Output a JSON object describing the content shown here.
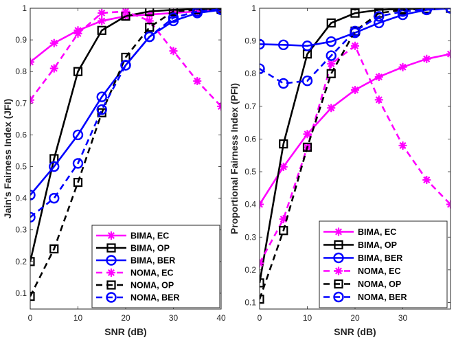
{
  "chart_data": [
    {
      "type": "line",
      "xlabel": "SNR (dB)",
      "ylabel": "Jain's Fairness Index (JFI)",
      "xlim": [
        0,
        40
      ],
      "ylim": [
        0.05,
        1.0
      ],
      "xticks": [
        "0",
        "10",
        "20",
        "30",
        "40"
      ],
      "yticks": [
        "0.1",
        "0.2",
        "0.3",
        "0.4",
        "0.5",
        "0.6",
        "0.7",
        "0.8",
        "0.9",
        "1"
      ],
      "legend_position": "bottom-right",
      "series": [
        {
          "name": "BIMA, EC",
          "color": "#ff00ff",
          "dash": "solid",
          "marker": "asterisk",
          "x": [
            0,
            5,
            10,
            15,
            20,
            25,
            30,
            35,
            40
          ],
          "y": [
            0.83,
            0.89,
            0.93,
            0.96,
            0.975,
            0.98,
            0.985,
            0.99,
            0.995
          ]
        },
        {
          "name": "BIMA, OP",
          "color": "#000000",
          "dash": "solid",
          "marker": "square",
          "x": [
            0,
            5,
            10,
            15,
            20,
            25,
            30,
            35,
            40
          ],
          "y": [
            0.2,
            0.525,
            0.8,
            0.93,
            0.975,
            0.99,
            0.995,
            0.997,
            1.0
          ]
        },
        {
          "name": "BIMA, BER",
          "color": "#0000ff",
          "dash": "solid",
          "marker": "circle",
          "x": [
            0,
            5,
            10,
            15,
            20,
            25,
            30,
            35,
            40
          ],
          "y": [
            0.41,
            0.5,
            0.6,
            0.72,
            0.82,
            0.91,
            0.96,
            0.985,
            0.995
          ]
        },
        {
          "name": "NOMA, EC",
          "color": "#ff00ff",
          "dash": "dashed",
          "marker": "asterisk",
          "x": [
            0,
            5,
            10,
            15,
            20,
            25,
            30,
            35,
            40
          ],
          "y": [
            0.71,
            0.81,
            0.92,
            0.985,
            0.99,
            0.96,
            0.865,
            0.77,
            0.69
          ]
        },
        {
          "name": "NOMA, OP",
          "color": "#000000",
          "dash": "dashed",
          "marker": "square",
          "x": [
            0,
            5,
            10,
            15,
            20,
            25,
            30,
            35,
            40
          ],
          "y": [
            0.09,
            0.24,
            0.45,
            0.67,
            0.845,
            0.94,
            0.99,
            0.995,
            0.997
          ]
        },
        {
          "name": "NOMA, BER",
          "color": "#0000ff",
          "dash": "dashed",
          "marker": "circle",
          "x": [
            0,
            5,
            10,
            15,
            20,
            25,
            30,
            35,
            40
          ],
          "y": [
            0.34,
            0.4,
            0.51,
            0.68,
            0.82,
            0.91,
            0.97,
            0.99,
            0.997
          ]
        }
      ]
    },
    {
      "type": "line",
      "xlabel": "SNR (dB)",
      "ylabel": "Proportional Fairness Index (PFI)",
      "xlim": [
        0,
        40
      ],
      "ylim": [
        0.08,
        1.0
      ],
      "xticks": [
        "0",
        "10",
        "20",
        "30"
      ],
      "yticks": [
        "0.1",
        "0.2",
        "0.3",
        "0.4",
        "0.5",
        "0.6",
        "0.7",
        "0.8",
        "0.9",
        "1"
      ],
      "legend_position": "bottom-right",
      "series": [
        {
          "name": "BIMA, EC",
          "color": "#ff00ff",
          "dash": "solid",
          "marker": "asterisk",
          "x": [
            0,
            5,
            10,
            15,
            20,
            25,
            30,
            35,
            40
          ],
          "y": [
            0.4,
            0.515,
            0.615,
            0.695,
            0.75,
            0.79,
            0.82,
            0.845,
            0.86
          ]
        },
        {
          "name": "BIMA, OP",
          "color": "#000000",
          "dash": "solid",
          "marker": "square",
          "x": [
            0,
            5,
            10,
            15,
            20,
            25,
            30,
            35,
            40
          ],
          "y": [
            0.16,
            0.585,
            0.86,
            0.955,
            0.985,
            0.995,
            0.998,
            0.999,
            1.0
          ]
        },
        {
          "name": "BIMA, BER",
          "color": "#0000ff",
          "dash": "solid",
          "marker": "circle",
          "x": [
            0,
            5,
            10,
            15,
            20,
            25,
            30,
            35,
            40
          ],
          "y": [
            0.89,
            0.888,
            0.885,
            0.898,
            0.925,
            0.955,
            0.98,
            0.995,
            1.0
          ]
        },
        {
          "name": "NOMA, EC",
          "color": "#ff00ff",
          "dash": "dashed",
          "marker": "asterisk",
          "x": [
            0,
            5,
            10,
            15,
            20,
            25,
            30,
            35,
            40
          ],
          "y": [
            0.22,
            0.355,
            0.575,
            0.83,
            0.885,
            0.72,
            0.58,
            0.475,
            0.4
          ]
        },
        {
          "name": "NOMA, OP",
          "color": "#000000",
          "dash": "dashed",
          "marker": "square",
          "x": [
            0,
            5,
            10,
            15,
            20,
            25,
            30,
            35,
            40
          ],
          "y": [
            0.11,
            0.32,
            0.575,
            0.8,
            0.93,
            0.985,
            0.995,
            0.998,
            1.0
          ]
        },
        {
          "name": "NOMA, BER",
          "color": "#0000ff",
          "dash": "dashed",
          "marker": "circle",
          "x": [
            0,
            5,
            10,
            15,
            20,
            25,
            30,
            35,
            40
          ],
          "y": [
            0.815,
            0.77,
            0.778,
            0.855,
            0.93,
            0.975,
            0.99,
            0.997,
            1.0
          ]
        }
      ]
    }
  ]
}
